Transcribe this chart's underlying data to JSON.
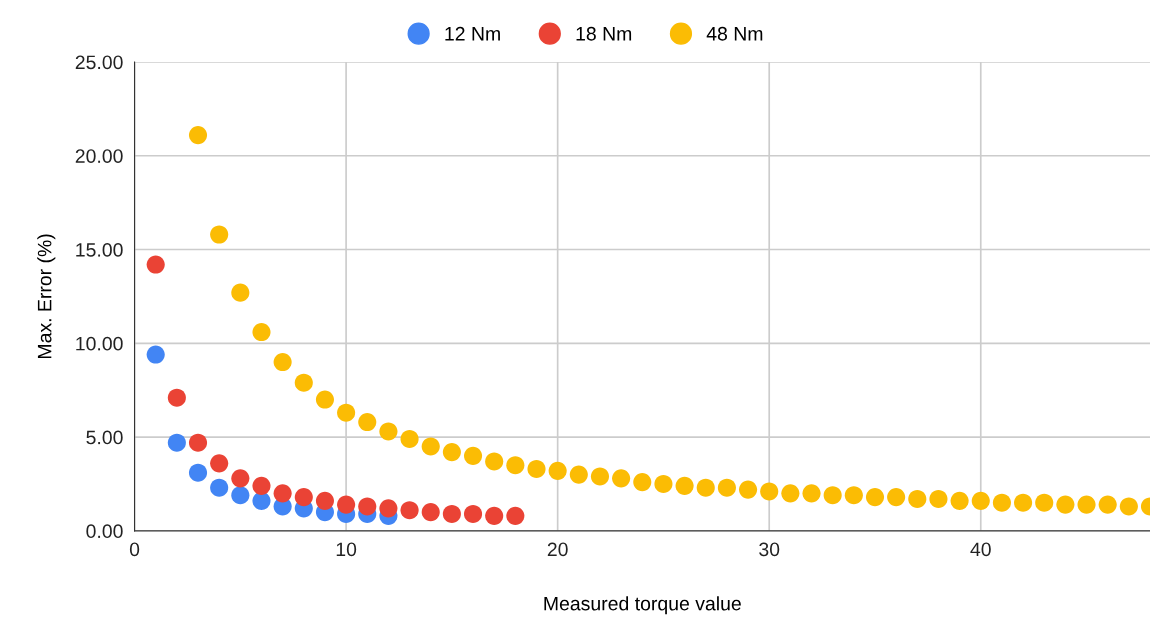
{
  "chart_data": {
    "type": "scatter",
    "xlabel": "Measured torque value",
    "ylabel": "Max. Error (%)",
    "xlim": [
      0,
      48
    ],
    "xticks": [
      0,
      10,
      20,
      30,
      40
    ],
    "ylim": [
      0,
      25
    ],
    "yticks": [
      {
        "value": 0,
        "label": "0.00"
      },
      {
        "value": 5,
        "label": "5.00"
      },
      {
        "value": 10,
        "label": "10.00"
      },
      {
        "value": 15,
        "label": "15.00"
      },
      {
        "value": 20,
        "label": "20.00"
      },
      {
        "value": 25,
        "label": "25.00"
      }
    ],
    "grid": true,
    "legend": "top",
    "marker": "circle",
    "series": [
      {
        "name": "12 Nm",
        "color": "#4285f4",
        "x": [
          1,
          2,
          3,
          4,
          5,
          6,
          7,
          8,
          9,
          10,
          11,
          12
        ],
        "values": [
          9.4,
          4.7,
          3.1,
          2.3,
          1.9,
          1.6,
          1.3,
          1.2,
          1.0,
          0.9,
          0.9,
          0.8
        ]
      },
      {
        "name": "18 Nm",
        "color": "#ea4335",
        "x": [
          1,
          2,
          3,
          4,
          5,
          6,
          7,
          8,
          9,
          10,
          11,
          12,
          13,
          14,
          15,
          16,
          17,
          18
        ],
        "values": [
          14.2,
          7.1,
          4.7,
          3.6,
          2.8,
          2.4,
          2.0,
          1.8,
          1.6,
          1.4,
          1.3,
          1.2,
          1.1,
          1.0,
          0.9,
          0.9,
          0.8,
          0.8
        ]
      },
      {
        "name": "48 Nm",
        "color": "#fbbc04",
        "x": [
          3,
          4,
          5,
          6,
          7,
          8,
          9,
          10,
          11,
          12,
          13,
          14,
          15,
          16,
          17,
          18,
          19,
          20,
          21,
          22,
          23,
          24,
          25,
          26,
          27,
          28,
          29,
          30,
          31,
          32,
          33,
          34,
          35,
          36,
          37,
          38,
          39,
          40,
          41,
          42,
          43,
          44,
          45,
          46,
          47,
          48
        ],
        "values": [
          21.1,
          15.8,
          12.7,
          10.6,
          9.0,
          7.9,
          7.0,
          6.3,
          5.8,
          5.3,
          4.9,
          4.5,
          4.2,
          4.0,
          3.7,
          3.5,
          3.3,
          3.2,
          3.0,
          2.9,
          2.8,
          2.6,
          2.5,
          2.4,
          2.3,
          2.3,
          2.2,
          2.1,
          2.0,
          2.0,
          1.9,
          1.9,
          1.8,
          1.8,
          1.7,
          1.7,
          1.6,
          1.6,
          1.5,
          1.5,
          1.5,
          1.4,
          1.4,
          1.4,
          1.3,
          1.3
        ]
      }
    ]
  }
}
